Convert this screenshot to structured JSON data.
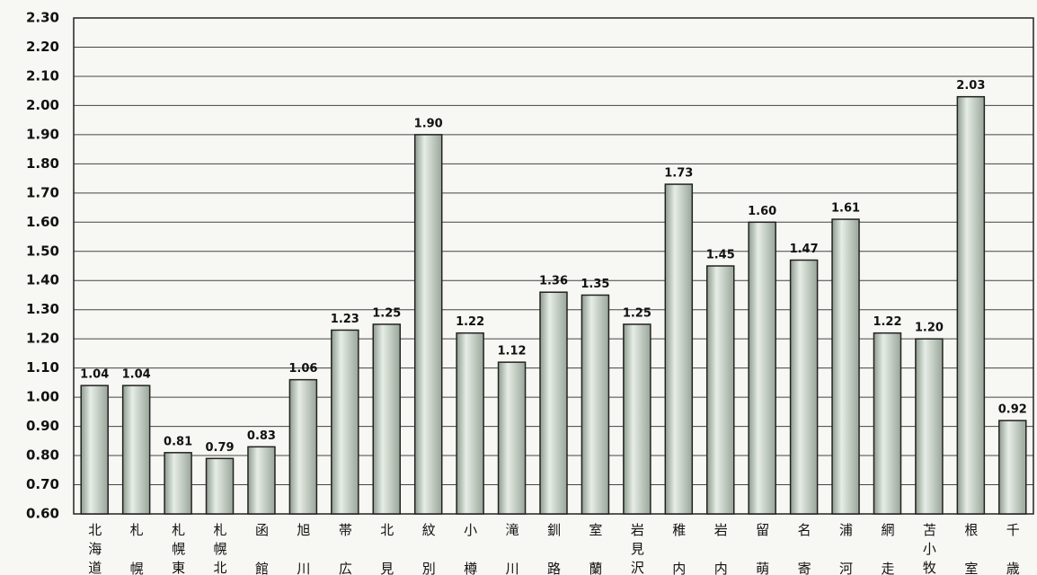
{
  "chart_data": {
    "type": "bar",
    "categories": [
      "北海道",
      "札幌",
      "札幌東",
      "札幌北",
      "函館",
      "旭川",
      "帯広",
      "北見",
      "紋別",
      "小樽",
      "滝川",
      "釧路",
      "室蘭",
      "岩見沢",
      "稚内",
      "岩内",
      "留萌",
      "名寄",
      "浦河",
      "網走",
      "苫小牧",
      "根室",
      "千歳"
    ],
    "values": [
      1.04,
      1.04,
      0.81,
      0.79,
      0.83,
      1.06,
      1.23,
      1.25,
      1.9,
      1.22,
      1.12,
      1.36,
      1.35,
      1.25,
      1.73,
      1.45,
      1.6,
      1.47,
      1.61,
      1.22,
      1.2,
      2.03,
      0.92
    ],
    "value_labels": [
      "1.04",
      "1.04",
      "0.81",
      "0.79",
      "0.83",
      "1.06",
      "1.23",
      "1.25",
      "1.90",
      "1.22",
      "1.12",
      "1.36",
      "1.35",
      "1.25",
      "1.73",
      "1.45",
      "1.60",
      "1.47",
      "1.61",
      "1.22",
      "1.20",
      "2.03",
      "0.92"
    ],
    "color": "#c9d3c9",
    "ylim": [
      0.6,
      2.3
    ],
    "yticks": [
      {
        "value": 0.6,
        "label": "0.60"
      },
      {
        "value": 0.7,
        "label": "0.70"
      },
      {
        "value": 0.8,
        "label": "0.80"
      },
      {
        "value": 0.9,
        "label": "0.90"
      },
      {
        "value": 1.0,
        "label": "1.00"
      },
      {
        "value": 1.1,
        "label": "1.10"
      },
      {
        "value": 1.2,
        "label": "1.20"
      },
      {
        "value": 1.3,
        "label": "1.30"
      },
      {
        "value": 1.4,
        "label": "1.40"
      },
      {
        "value": 1.5,
        "label": "1.50"
      },
      {
        "value": 1.6,
        "label": "1.60"
      },
      {
        "value": 1.7,
        "label": "1.70"
      },
      {
        "value": 1.8,
        "label": "1.80"
      },
      {
        "value": 1.9,
        "label": "1.90"
      },
      {
        "value": 2.0,
        "label": "2.00"
      },
      {
        "value": 2.1,
        "label": "2.10"
      },
      {
        "value": 2.2,
        "label": "2.20"
      },
      {
        "value": 2.3,
        "label": "2.30"
      }
    ],
    "grid": true
  }
}
